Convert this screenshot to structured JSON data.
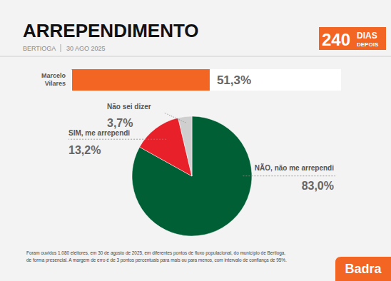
{
  "header": {
    "title": "ARREPENDIMENTO",
    "place": "BERTIOGA",
    "date": "30 AGO 2025",
    "badge": {
      "number": "240",
      "top": "DIAS",
      "bottom": "DEPOIS"
    }
  },
  "chart_data": [
    {
      "type": "bar",
      "orientation": "horizontal",
      "categories": [
        "Marcelo Vilares"
      ],
      "values": [
        51.3
      ],
      "value_labels": [
        "51,3%"
      ],
      "color": "#f26522",
      "xlim": [
        0,
        100
      ],
      "tick_labels": "y",
      "data_labels": true
    },
    {
      "type": "pie",
      "categories": [
        "NÃO, não me arrependi",
        "SIM, me arrependi",
        "Não sei dizer"
      ],
      "values": [
        83.0,
        13.2,
        3.7
      ],
      "value_labels": [
        "83,0%",
        "13,2%",
        "3,7%"
      ],
      "colors": [
        "#005f35",
        "#e8202a",
        "#cfcfcf"
      ],
      "data_labels": true
    }
  ],
  "footer": {
    "note": [
      "Foram ouvidos 1.080 eleitores, em 30 de agosto de 2025, em diferentes pontos de fluxo populacional, do município de Bertioga,",
      "de forma presencial. A margem de erro é de 3 pontos percentuais para mais ou para menos, com intervalo de confiança de 95%."
    ],
    "brand": "Badra"
  }
}
